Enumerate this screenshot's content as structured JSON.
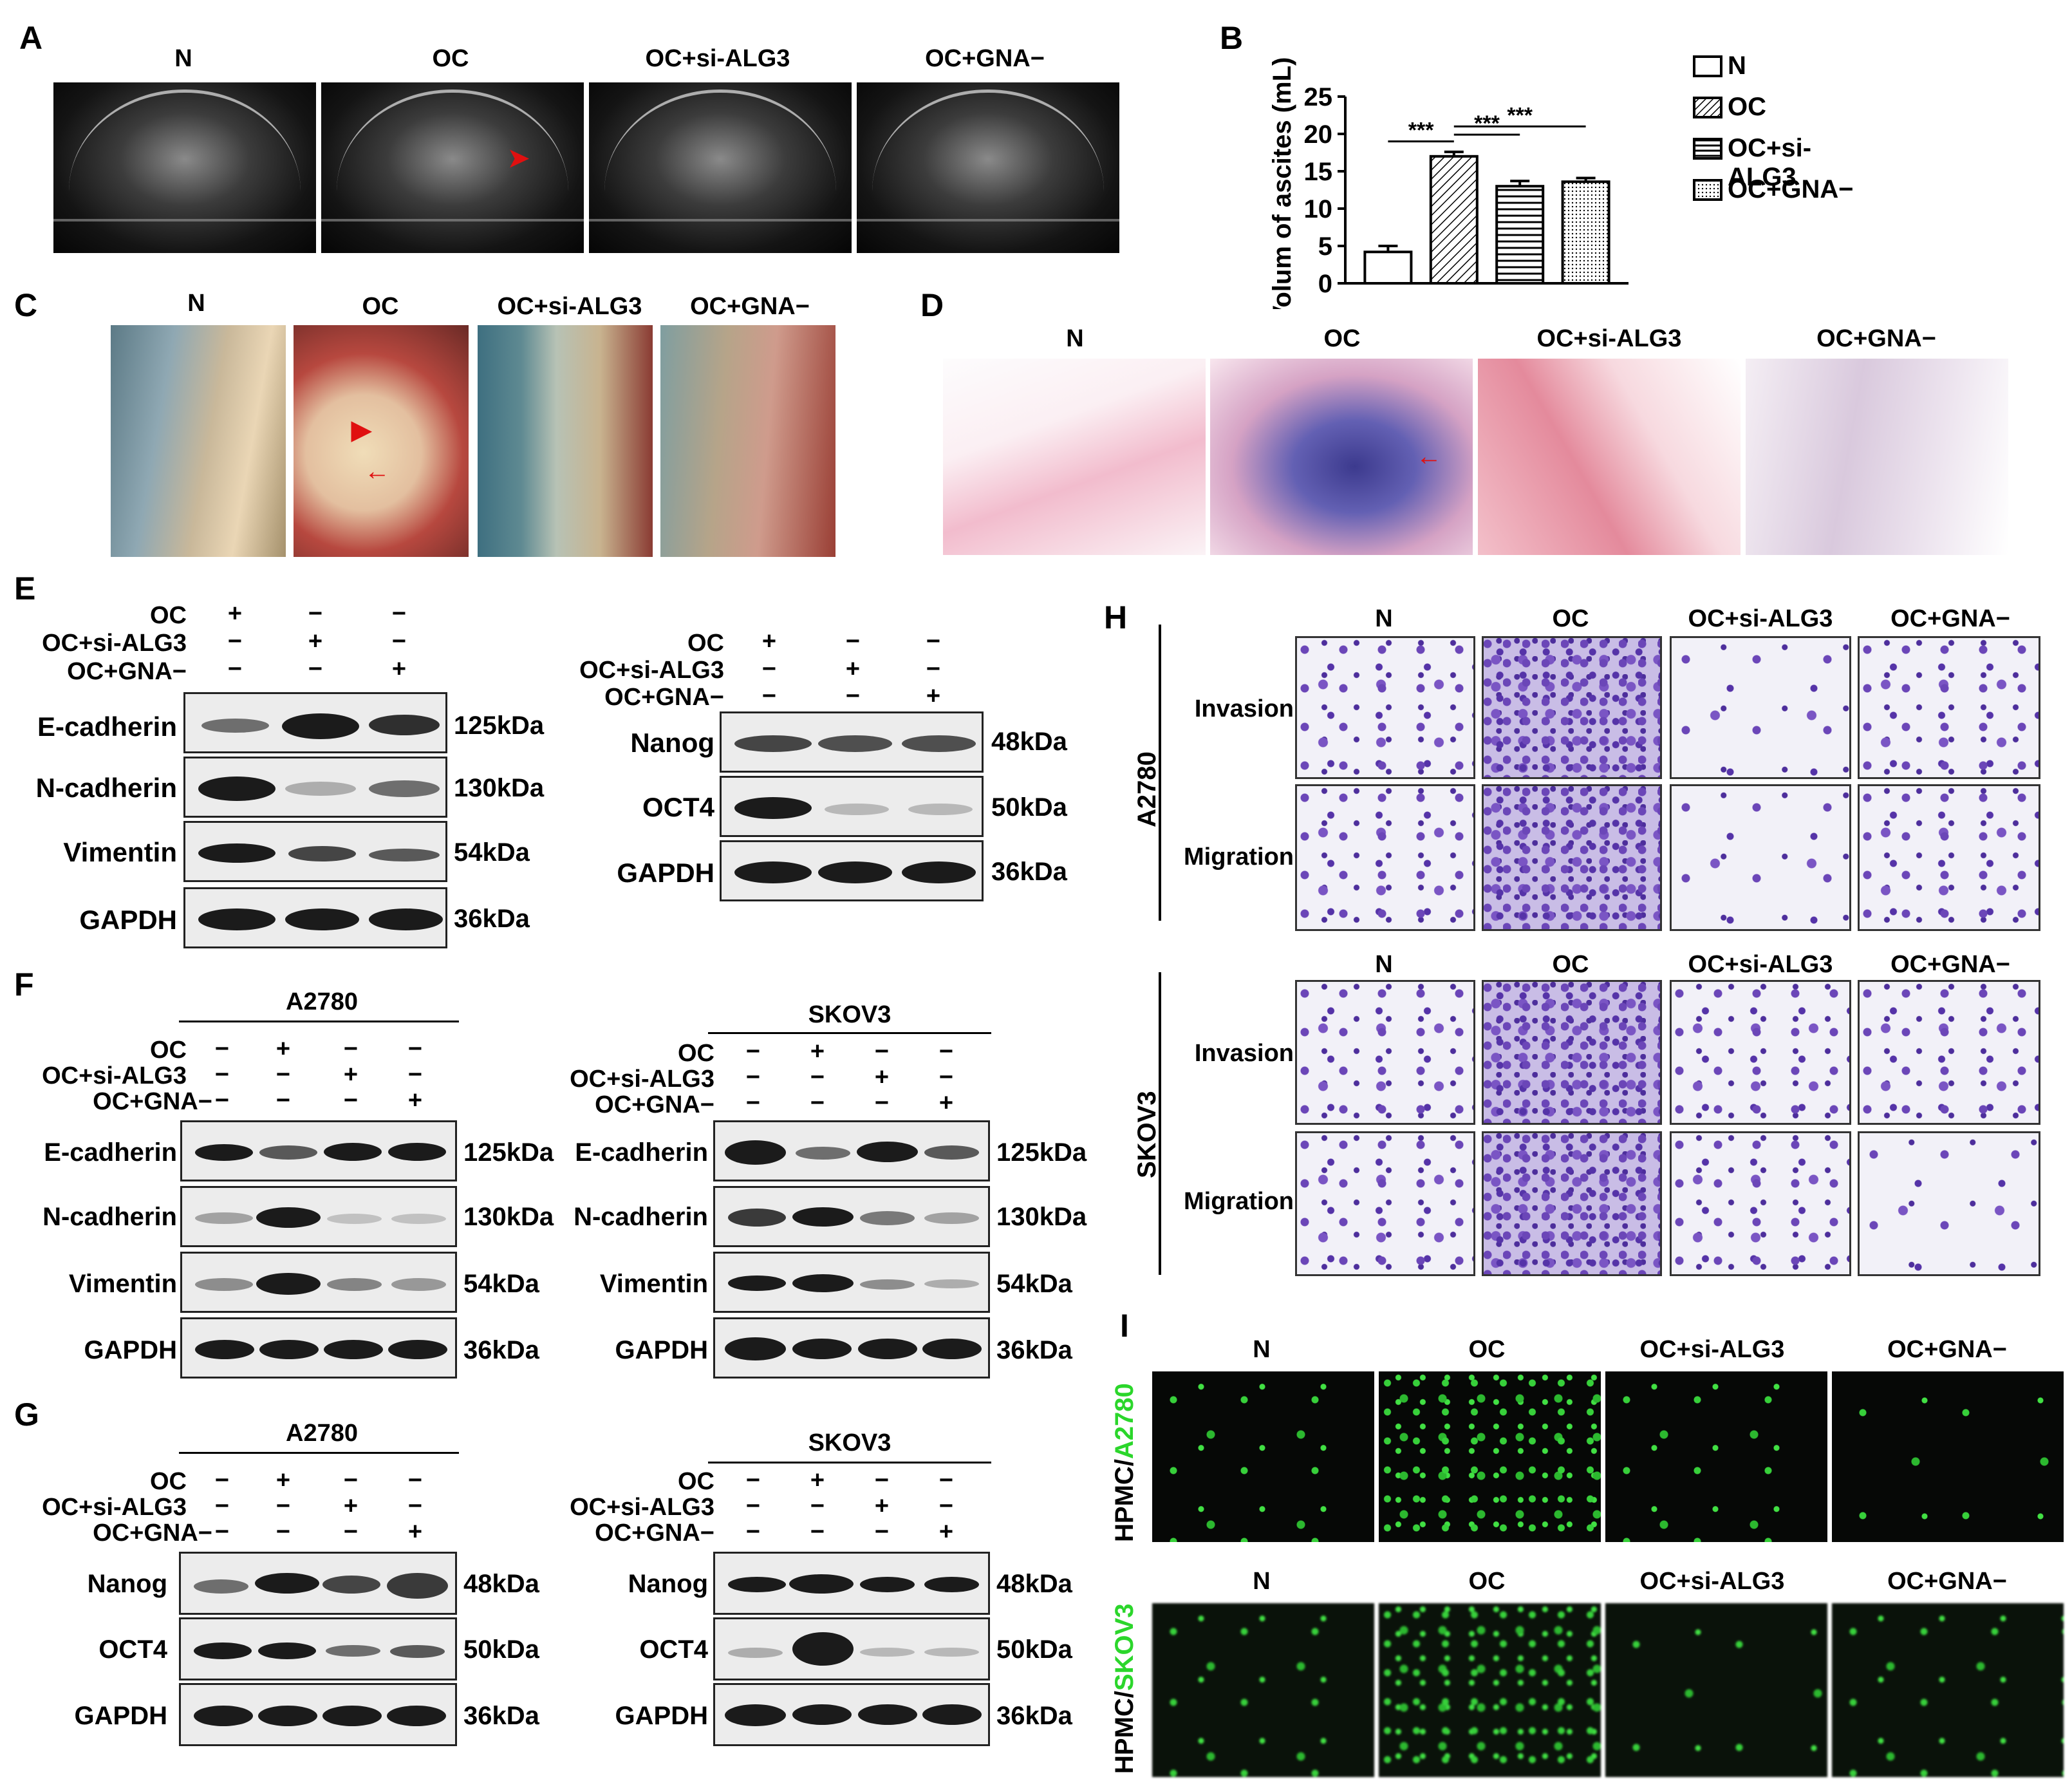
{
  "panels": {
    "A": "A",
    "B": "B",
    "C": "C",
    "D": "D",
    "E": "E",
    "F": "F",
    "G": "G",
    "H": "H",
    "I": "I"
  },
  "groups": [
    "N",
    "OC",
    "OC+si-ALG3",
    "OC+GNA−"
  ],
  "chart_data": {
    "type": "bar",
    "categories": [
      "N",
      "OC",
      "OC+si-ALG3",
      "OC+GNA−"
    ],
    "values": [
      4.2,
      17.0,
      13.0,
      13.6
    ],
    "errors": [
      0.8,
      0.6,
      0.7,
      0.5
    ],
    "ylabel": "Volum of ascites (mL)",
    "ylim": [
      0,
      25
    ],
    "yticks": [
      "0",
      "5",
      "10",
      "15",
      "20",
      "25"
    ],
    "legend": [
      "N",
      "OC",
      "OC+si-ALG3",
      "OC+GNA−"
    ],
    "significance": [
      "***",
      "***",
      "***"
    ]
  },
  "blot_E": {
    "treat_rows": [
      "OC",
      "OC+si-ALG3",
      "OC+GNA−"
    ],
    "left": {
      "signs": [
        [
          "+",
          "−",
          "−"
        ],
        [
          "−",
          "+",
          "−"
        ],
        [
          "−",
          "−",
          "+"
        ]
      ],
      "proteins": [
        "E-cadherin",
        "N-cadherin",
        "Vimentin",
        "GAPDH"
      ],
      "mw": [
        "125kDa",
        "130kDa",
        "54kDa",
        "36kDa"
      ]
    },
    "right": {
      "proteins": [
        "Nanog",
        "OCT4",
        "GAPDH"
      ],
      "mw": [
        "48kDa",
        "50kDa",
        "36kDa"
      ]
    }
  },
  "blot_F": {
    "treat_rows": [
      "OC",
      "OC+si-ALG3",
      "OC+GNA−"
    ],
    "signs": [
      [
        "−",
        "+",
        "−",
        "−"
      ],
      [
        "−",
        "−",
        "+",
        "−"
      ],
      [
        "−",
        "−",
        "−",
        "+"
      ]
    ],
    "cell_lines": [
      "A2780",
      "SKOV3"
    ],
    "proteins": [
      "E-cadherin",
      "N-cadherin",
      "Vimentin",
      "GAPDH"
    ],
    "mw": [
      "125kDa",
      "130kDa",
      "54kDa",
      "36kDa"
    ]
  },
  "blot_G": {
    "cell_lines": [
      "A2780",
      "SKOV3"
    ],
    "proteins": [
      "Nanog",
      "OCT4",
      "GAPDH"
    ],
    "mw": [
      "48kDa",
      "50kDa",
      "36kDa"
    ]
  },
  "transwell": {
    "cell_lines": [
      "A2780",
      "SKOV3"
    ],
    "rows": [
      "Invasion",
      "Migration"
    ]
  },
  "fluor": {
    "row_labels": [
      [
        "HPMC/",
        "A2780"
      ],
      [
        "HPMC/",
        "SKOV3"
      ]
    ],
    "label_green": "#2bd62b"
  },
  "colors": {
    "arrow": "#e01010",
    "band": "#1b1b1b"
  }
}
